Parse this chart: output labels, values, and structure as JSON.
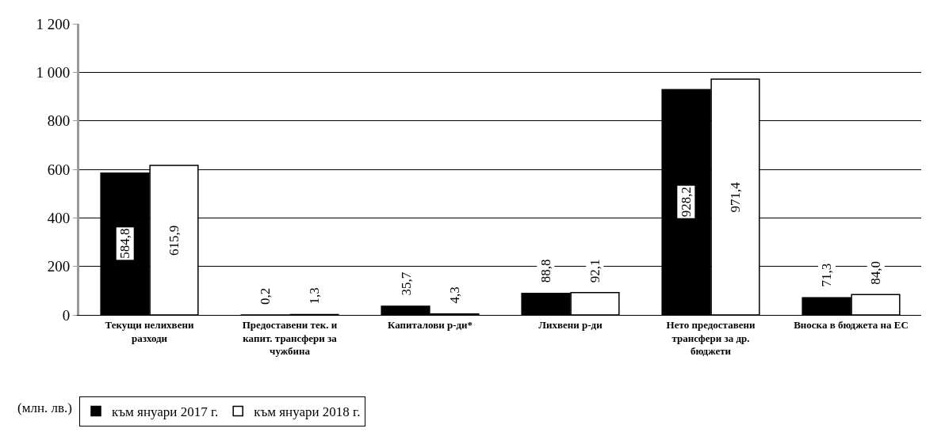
{
  "chart_data": {
    "type": "bar",
    "categories": [
      "Текущи нелихвени разходи",
      "Предоставени тек. и капит. трансфери за чужбина",
      "Капиталови р-ди*",
      "Лихвени р-ди",
      "Нето предоставени трансфери за др. бюджети",
      "Вноска в бюджета на ЕС"
    ],
    "series": [
      {
        "name": "към януари 2017 г.",
        "color": "#000000",
        "values": [
          584.8,
          0.2,
          35.7,
          88.8,
          928.2,
          71.3
        ],
        "value_labels": [
          "584,8",
          "0,2",
          "35,7",
          "88,8",
          "928,2",
          "71,3"
        ]
      },
      {
        "name": "към януари 2018 г.",
        "color": "#ffffff",
        "values": [
          615.9,
          1.3,
          4.3,
          92.1,
          971.4,
          84.0
        ],
        "value_labels": [
          "615,9",
          "1,3",
          "4,3",
          "92,1",
          "971,4",
          "84,0"
        ]
      }
    ],
    "ylim": [
      0,
      1200
    ],
    "yticks": [
      0,
      200,
      400,
      600,
      800,
      {
        "value": 1000,
        "label": "1 000"
      },
      {
        "value": 1200,
        "label": "1 200"
      }
    ],
    "grid": "y",
    "legend": "bottom",
    "annotations": [
      "(млн. лв.)"
    ]
  }
}
